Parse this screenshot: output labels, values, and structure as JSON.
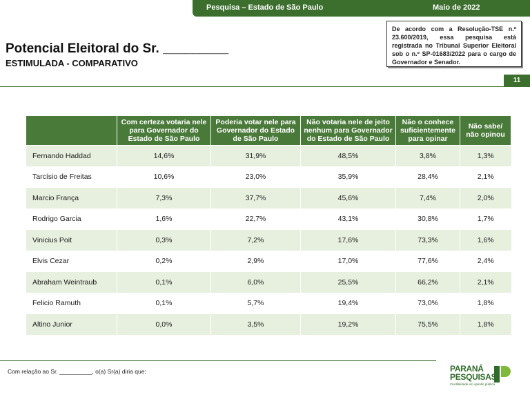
{
  "header": {
    "survey": "Pesquisa – Estado de São Paulo",
    "date": "Maio de 2022"
  },
  "title": "Potencial Eleitoral do Sr. _________",
  "subtitle": "ESTIMULADA - COMPARATIVO",
  "registration": "De acordo com a Resolução-TSE n.º 23.600/2019, essa pesquisa está registrada no Tribunal Superior Eleitoral sob o n.º SP-01683/2022 para o cargo de Governador e Senador.",
  "page_number": "11",
  "table": {
    "columns": [
      "Com certeza votaria nele para Governador do Estado de São Paulo",
      "Poderia votar nele para Governador do Estado de São Paulo",
      "Não votaria nele de jeito nenhum para Governador do Estado de São Paulo",
      "Não o conhece suficientemente para opinar",
      "Não sabe/ não opinou"
    ],
    "rows": [
      {
        "name": "Fernando Haddad",
        "values": [
          "14,6%",
          "31,9%",
          "48,5%",
          "3,8%",
          "1,3%"
        ]
      },
      {
        "name": "Tarcísio de Freitas",
        "values": [
          "10,6%",
          "23,0%",
          "35,9%",
          "28,4%",
          "2,1%"
        ]
      },
      {
        "name": "Marcio França",
        "values": [
          "7,3%",
          "37,7%",
          "45,6%",
          "7,4%",
          "2,0%"
        ]
      },
      {
        "name": "Rodrigo Garcia",
        "values": [
          "1,6%",
          "22,7%",
          "43,1%",
          "30,8%",
          "1,7%"
        ]
      },
      {
        "name": "Vinicius Poit",
        "values": [
          "0,3%",
          "7,2%",
          "17,6%",
          "73,3%",
          "1,6%"
        ]
      },
      {
        "name": "Elvis Cezar",
        "values": [
          "0,2%",
          "2,9%",
          "17,0%",
          "77,6%",
          "2,4%"
        ]
      },
      {
        "name": "Abraham Weintraub",
        "values": [
          "0,1%",
          "6,0%",
          "25,5%",
          "66,2%",
          "2,1%"
        ]
      },
      {
        "name": "Felicio Ramuth",
        "values": [
          "0,1%",
          "5,7%",
          "19,4%",
          "73,0%",
          "1,8%"
        ]
      },
      {
        "name": "Altino Junior",
        "values": [
          "0,0%",
          "3,5%",
          "19,2%",
          "75,5%",
          "1,8%"
        ]
      }
    ]
  },
  "footnote": "Com relação ao Sr. __________, o(a) Sr(a) diria que:",
  "logo": {
    "line1": "PARANÁ",
    "line2": "PESQUISAS",
    "tagline": "Credibilidade em opinião pública"
  },
  "colors": {
    "brand_green": "#3c6e2e",
    "header_green": "#4a7a3a",
    "row_stripe": "#e7f0df"
  }
}
